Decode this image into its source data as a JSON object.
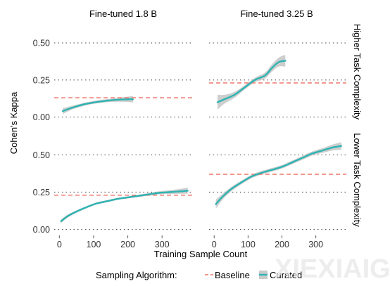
{
  "colors": {
    "baseline": "#f0766b",
    "curated": "#2db3b2",
    "ribbon": "#bdbdbd",
    "grid": "#555555",
    "text": "#333333",
    "watermark": "#e6e6e6"
  },
  "chart_data": {
    "type": "line",
    "facet_cols": [
      "Fine-tuned 1.8 B",
      "Fine-tuned 3.25 B"
    ],
    "facet_rows": [
      "Higher Task Complexity",
      "Lower Task Complexity"
    ],
    "xlabel": "Training Sample Count",
    "ylabel": "Cohen's Kappa",
    "x_ticks": [
      0,
      100,
      200,
      300
    ],
    "y_ticks": [
      0.0,
      0.25,
      0.5
    ],
    "y_tick_labels": [
      "0.00",
      "0.25",
      "0.50"
    ],
    "xlim": [
      -15,
      390
    ],
    "ylim_top": [
      -0.04,
      0.6
    ],
    "ylim_bottom": [
      -0.04,
      0.62
    ],
    "grid": "major y dotted",
    "legend": {
      "title": "Sampling Algorithm:",
      "position": "bottom",
      "entries": [
        "Baseline",
        "Curated"
      ]
    },
    "panels": [
      {
        "facet_col": "Fine-tuned 1.8 B",
        "facet_row": "Higher Task Complexity",
        "baseline": 0.13,
        "curated": {
          "x": [
            10,
            40,
            80,
            120,
            160,
            200,
            215
          ],
          "y": [
            0.04,
            0.065,
            0.09,
            0.105,
            0.115,
            0.12,
            0.12
          ],
          "ci": [
            0.02,
            0.012,
            0.01,
            0.01,
            0.012,
            0.018,
            0.022
          ]
        }
      },
      {
        "facet_col": "Fine-tuned 3.25 B",
        "facet_row": "Higher Task Complexity",
        "baseline": 0.23,
        "curated": {
          "x": [
            10,
            30,
            60,
            90,
            120,
            150,
            170,
            190,
            210
          ],
          "y": [
            0.1,
            0.12,
            0.15,
            0.2,
            0.25,
            0.28,
            0.33,
            0.37,
            0.38
          ],
          "ci": [
            0.05,
            0.03,
            0.02,
            0.015,
            0.015,
            0.02,
            0.025,
            0.03,
            0.04
          ]
        }
      },
      {
        "facet_col": "Fine-tuned 1.8 B",
        "facet_row": "Lower Task Complexity",
        "baseline": 0.23,
        "curated": {
          "x": [
            5,
            25,
            50,
            80,
            110,
            140,
            170,
            200,
            230,
            260,
            290,
            320,
            350,
            375
          ],
          "y": [
            0.055,
            0.09,
            0.12,
            0.15,
            0.175,
            0.19,
            0.205,
            0.215,
            0.225,
            0.235,
            0.245,
            0.25,
            0.255,
            0.26
          ],
          "ci": [
            0.012,
            0.01,
            0.008,
            0.007,
            0.007,
            0.007,
            0.007,
            0.007,
            0.008,
            0.009,
            0.01,
            0.012,
            0.016,
            0.02
          ]
        }
      },
      {
        "facet_col": "Fine-tuned 3.25 B",
        "facet_row": "Lower Task Complexity",
        "baseline": 0.37,
        "curated": {
          "x": [
            5,
            25,
            50,
            80,
            110,
            140,
            170,
            200,
            230,
            260,
            290,
            320,
            350,
            375
          ],
          "y": [
            0.17,
            0.22,
            0.27,
            0.315,
            0.355,
            0.38,
            0.4,
            0.42,
            0.45,
            0.48,
            0.51,
            0.53,
            0.55,
            0.56
          ],
          "ci": [
            0.03,
            0.02,
            0.015,
            0.012,
            0.012,
            0.012,
            0.012,
            0.012,
            0.012,
            0.013,
            0.014,
            0.016,
            0.02,
            0.025
          ]
        }
      }
    ]
  }
}
